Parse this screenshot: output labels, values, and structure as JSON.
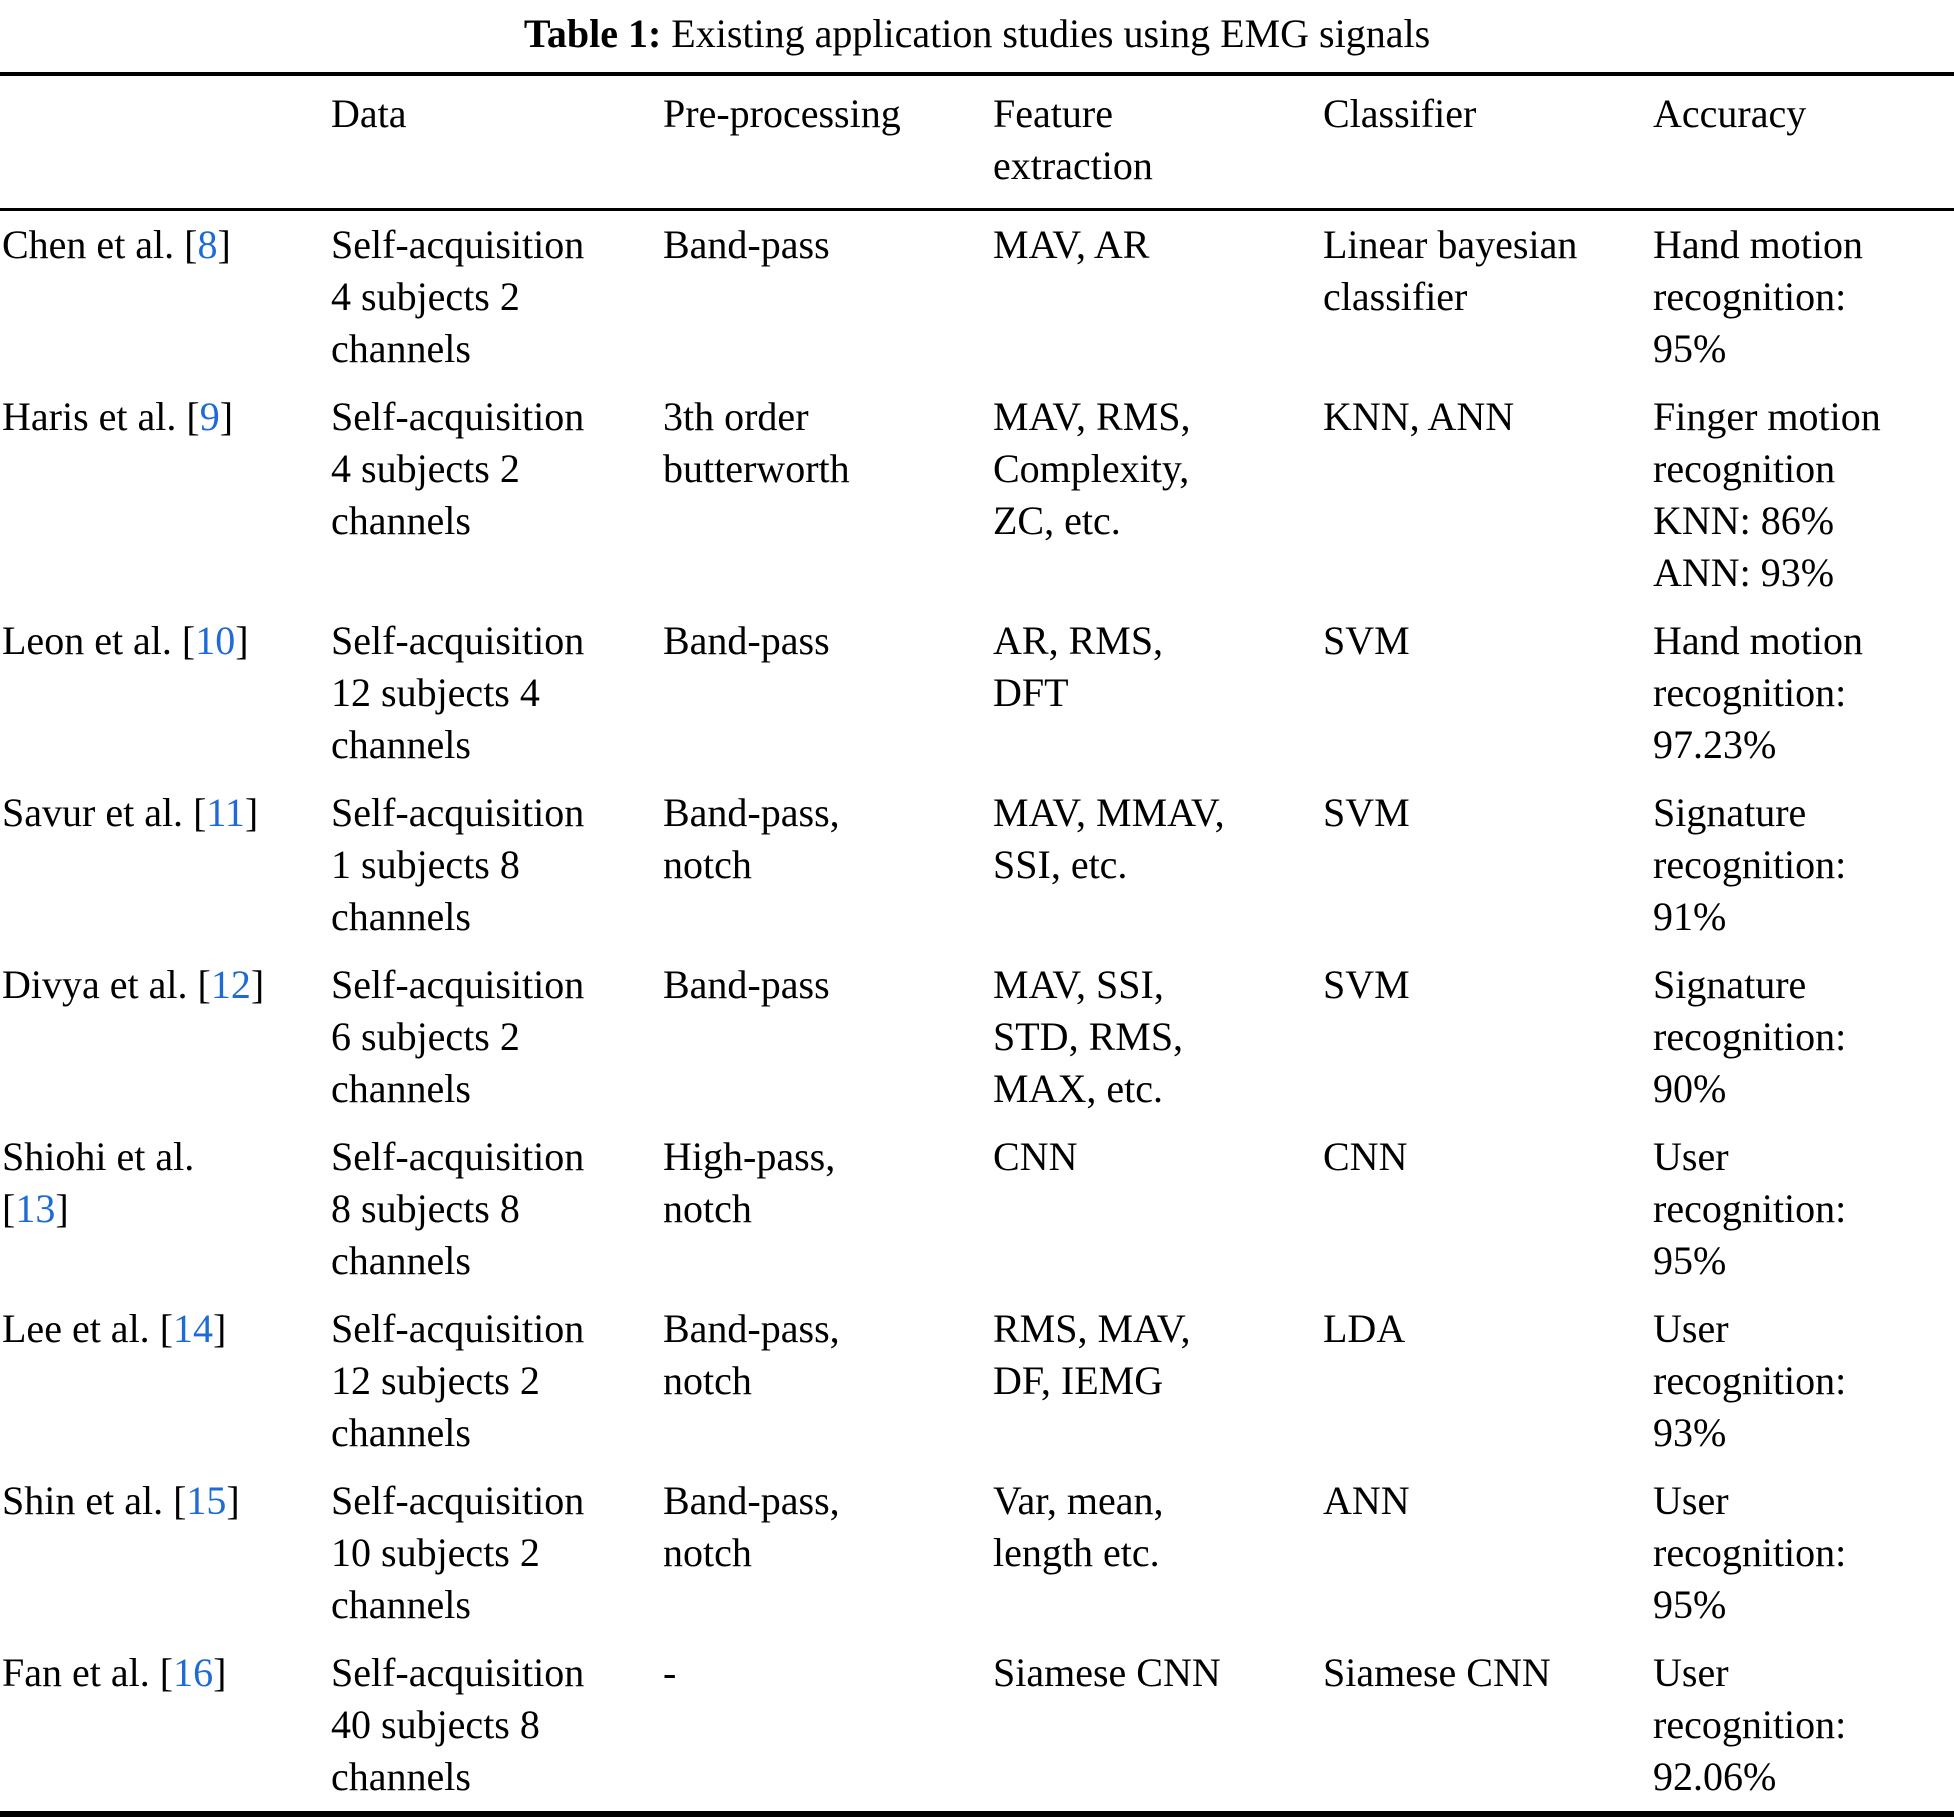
{
  "accent_color": "#1e6bd6",
  "caption": {
    "label": "Table 1:",
    "text": "Existing application studies using EMG signals"
  },
  "table": {
    "columns": [
      "",
      "Data",
      "Pre-processing",
      "Feature\nextraction",
      "Classifier",
      "Accuracy"
    ],
    "rows": [
      {
        "study": "Chen et al. ",
        "ref": "8",
        "data": "Self-acquisition\n4 subjects 2\nchannels",
        "preprocessing": "Band-pass",
        "features": "MAV, AR",
        "classifier": "Linear bayesian\nclassifier",
        "accuracy": "Hand motion\nrecognition:\n95%"
      },
      {
        "study": "Haris et al. ",
        "ref": "9",
        "data": "Self-acquisition\n4 subjects 2\nchannels",
        "preprocessing": "3th order\nbutterworth",
        "features": "MAV, RMS,\nComplexity,\nZC, etc.",
        "classifier": "KNN, ANN",
        "accuracy": "Finger motion\nrecognition\nKNN: 86%\nANN: 93%"
      },
      {
        "study": "Leon et al. ",
        "ref": "10",
        "data": "Self-acquisition\n12 subjects 4\nchannels",
        "preprocessing": "Band-pass",
        "features": "AR, RMS,\nDFT",
        "classifier": "SVM",
        "accuracy": "Hand motion\nrecognition:\n97.23%"
      },
      {
        "study": "Savur et al. ",
        "ref": "11",
        "data": "Self-acquisition\n1 subjects 8\nchannels",
        "preprocessing": "Band-pass,\nnotch",
        "features": "MAV, MMAV,\nSSI, etc.",
        "classifier": "SVM",
        "accuracy": "Signature\nrecognition:\n91%"
      },
      {
        "study": "Divya et al. ",
        "ref": "12",
        "data": "Self-acquisition\n6 subjects 2\nchannels",
        "preprocessing": "Band-pass",
        "features": "MAV, SSI,\nSTD, RMS,\nMAX, etc.",
        "classifier": "SVM",
        "accuracy": "Signature\nrecognition:\n90%"
      },
      {
        "study": "Shiohi et al.\n",
        "ref": "13",
        "data": "Self-acquisition\n8 subjects 8\nchannels",
        "preprocessing": "High-pass,\nnotch",
        "features": "CNN",
        "classifier": "CNN",
        "accuracy": "User\nrecognition:\n95%"
      },
      {
        "study": "Lee et al. ",
        "ref": "14",
        "data": "Self-acquisition\n12 subjects 2\nchannels",
        "preprocessing": "Band-pass,\nnotch",
        "features": "RMS, MAV,\nDF, IEMG",
        "classifier": "LDA",
        "accuracy": "User\nrecognition:\n93%"
      },
      {
        "study": "Shin et al. ",
        "ref": "15",
        "data": "Self-acquisition\n10 subjects 2\nchannels",
        "preprocessing": "Band-pass,\nnotch",
        "features": "Var, mean,\nlength etc.",
        "classifier": "ANN",
        "accuracy": "User\nrecognition:\n95%"
      },
      {
        "study": "Fan et al. ",
        "ref": "16",
        "data": "Self-acquisition\n40 subjects 8\nchannels",
        "preprocessing": "-",
        "features": "Siamese CNN",
        "classifier": "Siamese CNN",
        "accuracy": "User\nrecognition:\n92.06%"
      }
    ]
  }
}
